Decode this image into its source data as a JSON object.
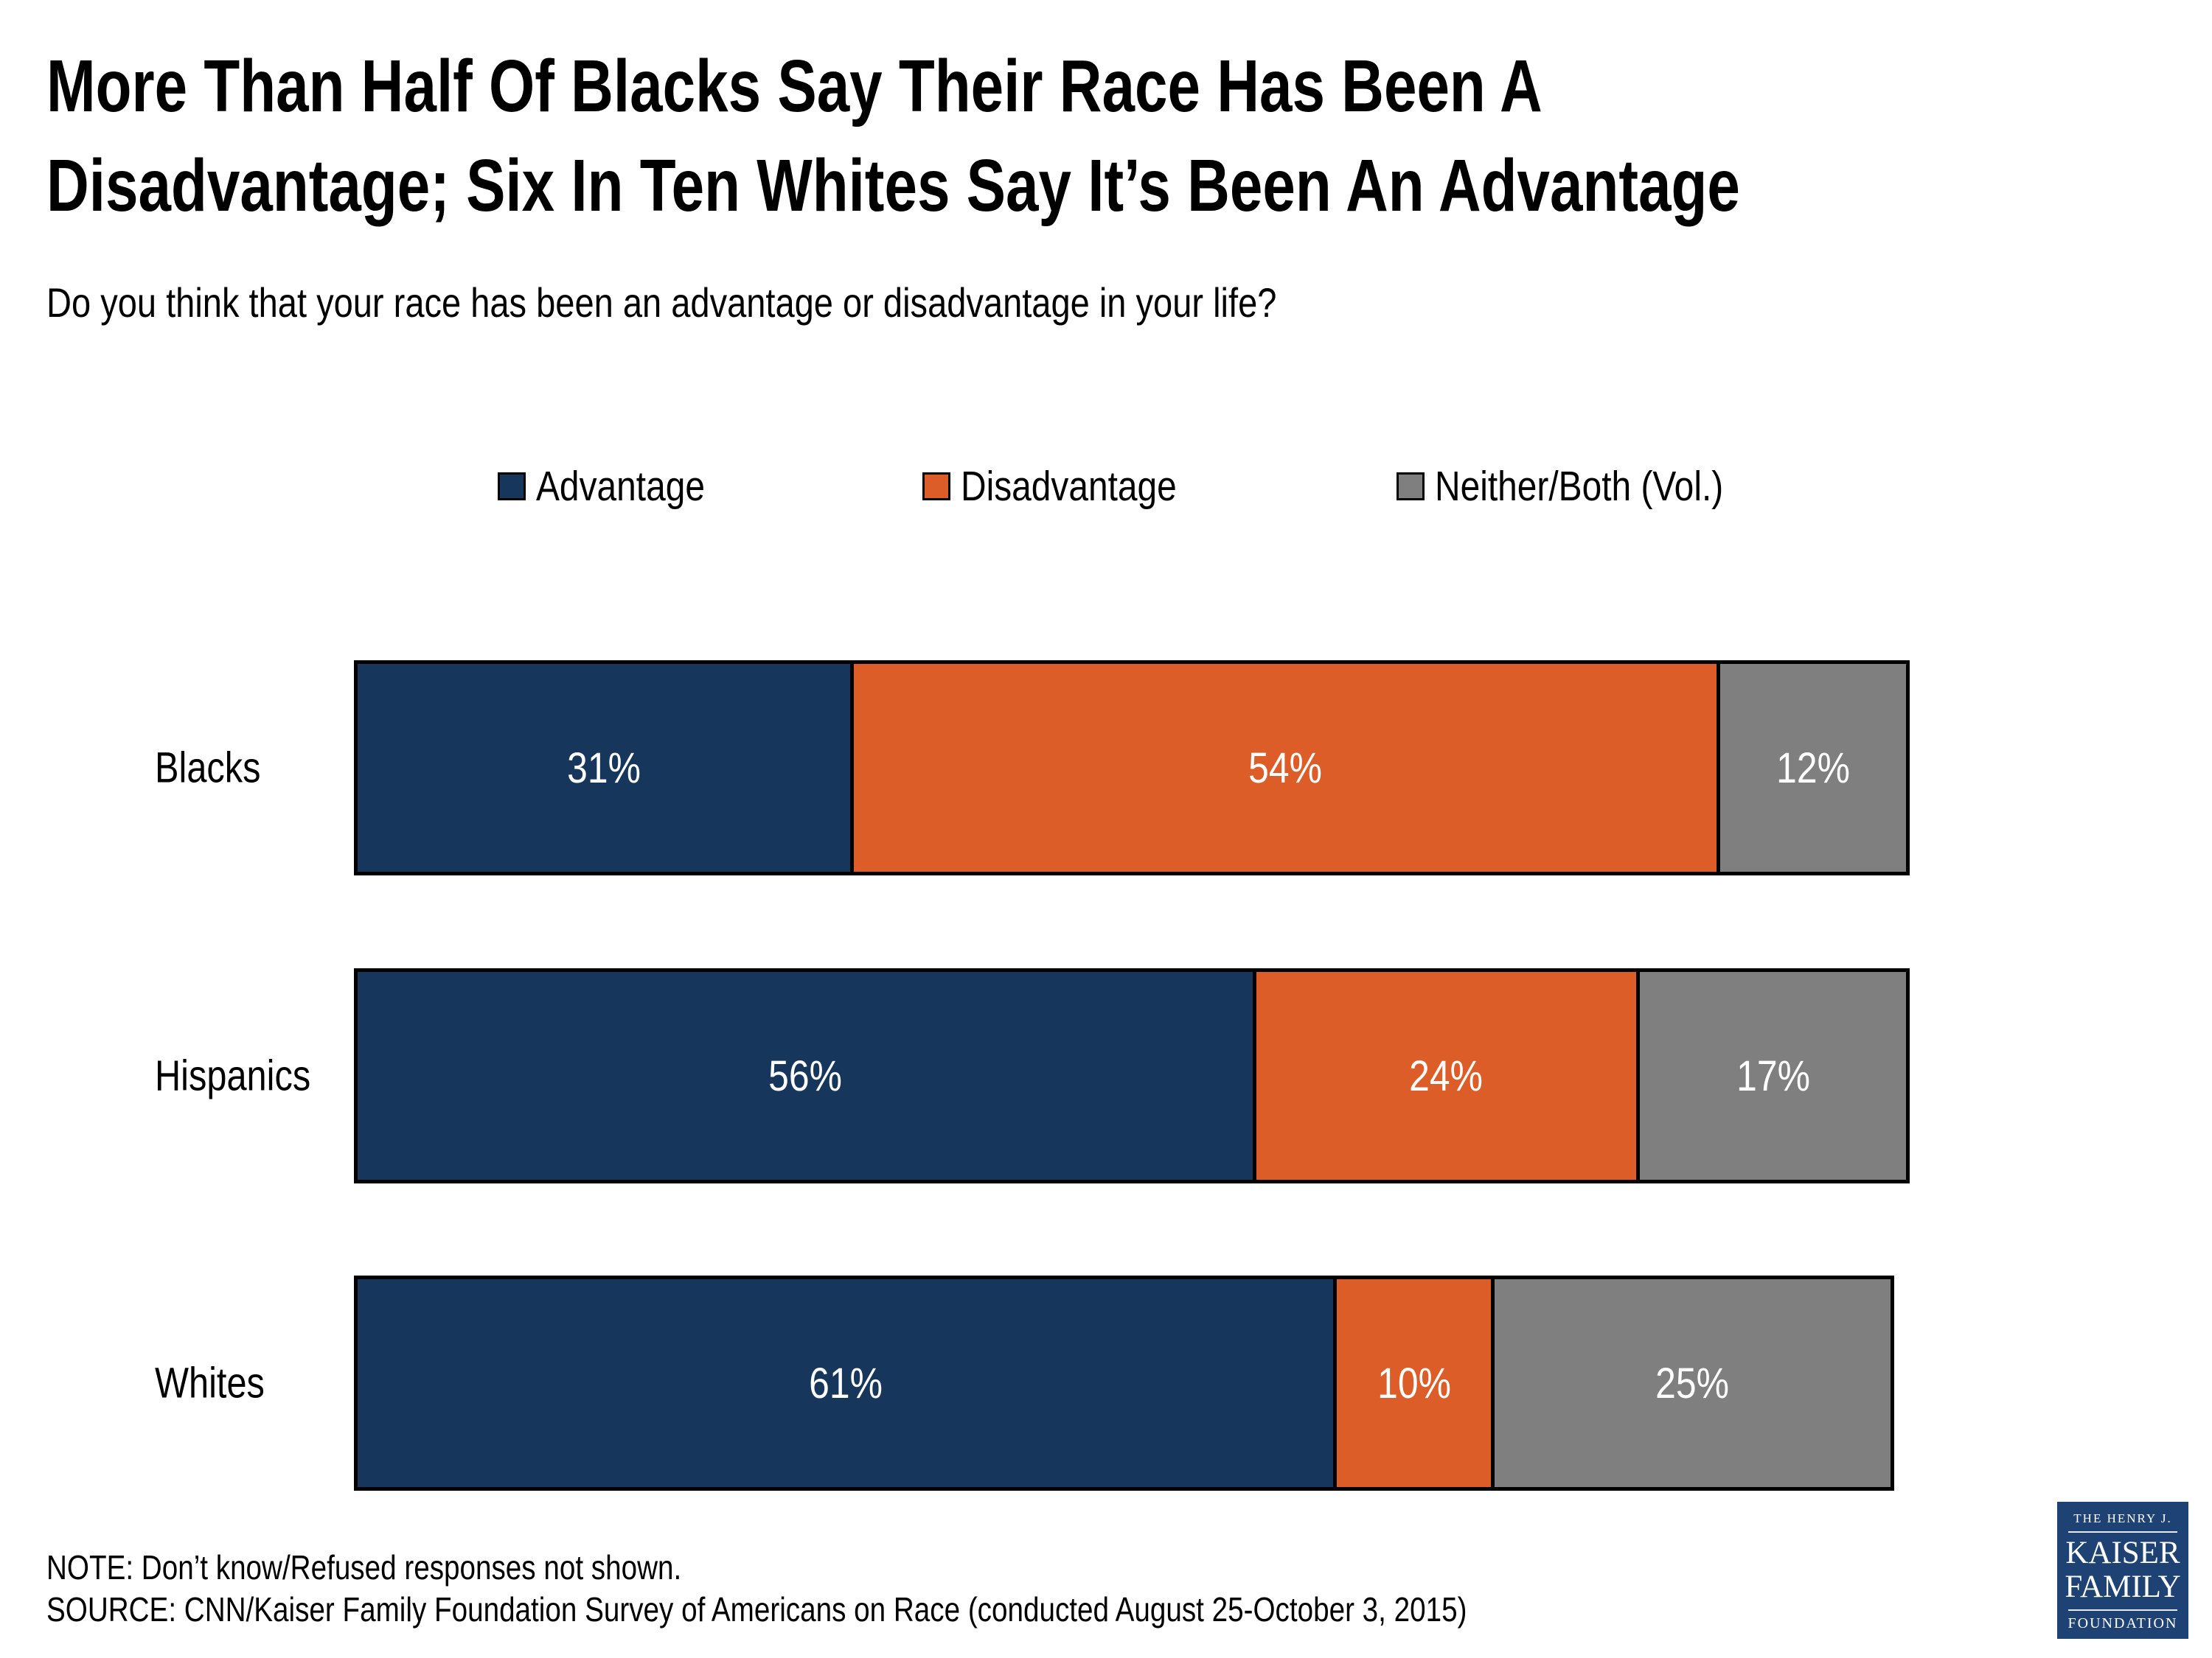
{
  "colors": {
    "advantage": "#16365C",
    "disadvantage": "#DC5D28",
    "neither": "#7F7F7F",
    "bar_border": "#000000",
    "bar_label_text": "#FFFFFF",
    "text": "#000000",
    "logo_background": "#1E4273",
    "logo_text": "#FFFFFF"
  },
  "chart_data": {
    "type": "bar",
    "orientation": "horizontal",
    "stacked": true,
    "grid": false,
    "title_lines": [
      "More Than Half Of Blacks Say Their Race Has Been A",
      "Disadvantage; Six In Ten Whites Say It’s Been An Advantage"
    ],
    "subtitle": "Do you think that your race has been an advantage or disadvantage in your life?",
    "categories": [
      "Blacks",
      "Hispanics",
      "Whites"
    ],
    "series": [
      {
        "name": "Advantage",
        "key": "advantage",
        "values": [
          31,
          56,
          61
        ]
      },
      {
        "name": "Disadvantage",
        "key": "disadvantage",
        "values": [
          54,
          24,
          10
        ]
      },
      {
        "name": "Neither/Both (Vol.)",
        "key": "neither",
        "values": [
          12,
          17,
          25
        ]
      }
    ],
    "value_suffix": "%",
    "xlim": [
      0,
      100
    ],
    "legend": {
      "position": "top",
      "entries": [
        {
          "label": "Advantage",
          "key": "advantage"
        },
        {
          "label": "Disadvantage",
          "key": "disadvantage"
        },
        {
          "label": "Neither/Both (Vol.)",
          "key": "neither"
        }
      ]
    },
    "note": "NOTE: Don’t know/Refused responses not shown.",
    "source": "SOURCE: CNN/Kaiser Family Foundation Survey of Americans on Race (conducted August 25-October 3, 2015)"
  },
  "logo": {
    "line1": "THE HENRY J.",
    "line2": "KAISER",
    "line3": "FAMILY",
    "line4": "FOUNDATION"
  }
}
